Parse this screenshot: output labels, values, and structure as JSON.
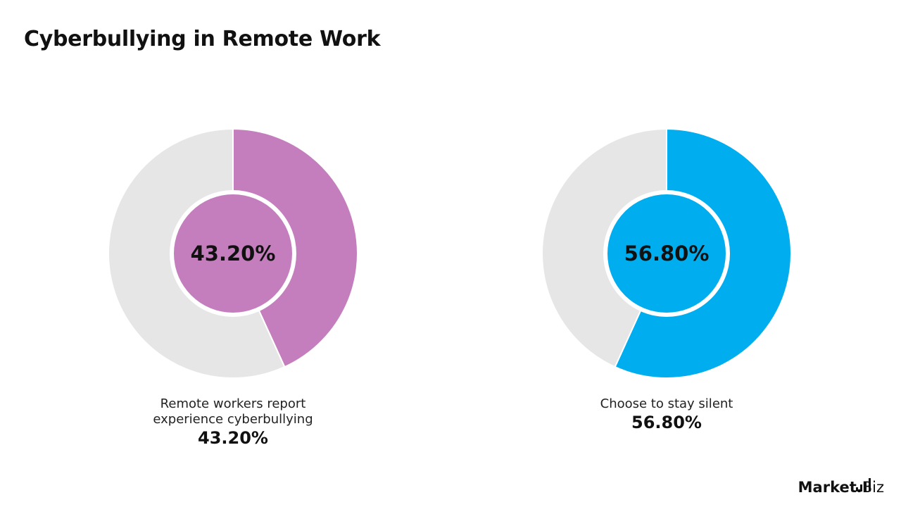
{
  "title": "Cyberbullying in Remote Work",
  "chart_data": [
    {
      "type": "pie",
      "style": "donut",
      "slices": [
        {
          "label": "Remote workers report experience cyberbullying",
          "value": 43.2,
          "color": "#C47EBD"
        },
        {
          "label": "",
          "value": 56.8,
          "color": "#E6E6E6"
        }
      ],
      "center_text": "43.20%",
      "caption_lines": [
        "Remote workers report",
        "experience cyberbullying"
      ],
      "caption_value": "43.20%"
    },
    {
      "type": "pie",
      "style": "donut",
      "slices": [
        {
          "label": "Choose to stay silent",
          "value": 56.8,
          "color": "#00AEEF"
        },
        {
          "label": "",
          "value": 43.2,
          "color": "#E6E6E6"
        }
      ],
      "center_text": "56.80%",
      "caption_lines": [
        "Choose to stay silent"
      ],
      "caption_value": "56.80%"
    }
  ],
  "logo": {
    "text_bold": "Market",
    "text_dot": ".",
    "text_light": "Biz",
    "icon": "bar-chart-icon"
  }
}
